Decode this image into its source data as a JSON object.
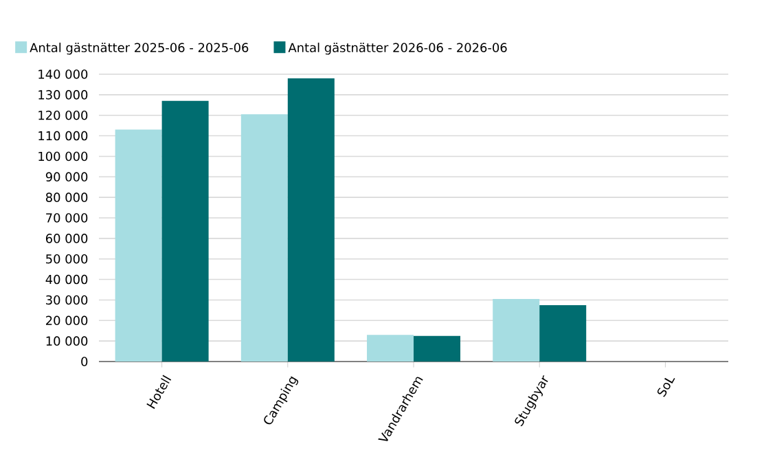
{
  "chart_data": {
    "type": "bar",
    "categories": [
      "Hotell",
      "Camping",
      "Vandrarhem",
      "Stugbyar",
      "SoL"
    ],
    "series": [
      {
        "name": "Antal gästnätter 2025-06 - 2025-06",
        "color": "#a6dde2",
        "values": [
          113000,
          120500,
          13000,
          30500,
          0
        ]
      },
      {
        "name": "Antal gästnätter 2026-06 - 2026-06",
        "color": "#006d70",
        "values": [
          127000,
          138000,
          12500,
          27500,
          0
        ]
      }
    ],
    "ylim": [
      0,
      140000
    ],
    "yticks": [
      {
        "value": 0,
        "label": "0"
      },
      {
        "value": 10000,
        "label": "10 000"
      },
      {
        "value": 20000,
        "label": "20 000"
      },
      {
        "value": 30000,
        "label": "30 000"
      },
      {
        "value": 40000,
        "label": "40 000"
      },
      {
        "value": 50000,
        "label": "50 000"
      },
      {
        "value": 60000,
        "label": "60 000"
      },
      {
        "value": 70000,
        "label": "70 000"
      },
      {
        "value": 80000,
        "label": "80 000"
      },
      {
        "value": 90000,
        "label": "90 000"
      },
      {
        "value": 100000,
        "label": "100 000"
      },
      {
        "value": 110000,
        "label": "110 000"
      },
      {
        "value": 120000,
        "label": "120 000"
      },
      {
        "value": 130000,
        "label": "130 000"
      },
      {
        "value": 140000,
        "label": "140 000"
      }
    ],
    "grid": "y",
    "legend": "top left"
  }
}
